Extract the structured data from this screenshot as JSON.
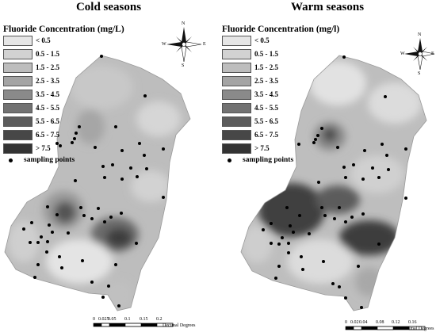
{
  "cold": {
    "title": "Cold seasons",
    "legend_title": "Fluoride Concentration (mg/L)",
    "legend": [
      {
        "label": "< 0.5",
        "color": "#e6e6e6"
      },
      {
        "label": "0.5 - 1.5",
        "color": "#d2d2d2"
      },
      {
        "label": "1.5 - 2.5",
        "color": "#bdbdbd"
      },
      {
        "label": "2.5 - 3.5",
        "color": "#a4a4a4"
      },
      {
        "label": "3.5 - 4.5",
        "color": "#8a8a8a"
      },
      {
        "label": "4.5 - 5.5",
        "color": "#727272"
      },
      {
        "label": "5.5 - 6.5",
        "color": "#5c5c5c"
      },
      {
        "label": "6.5 - 7.5",
        "color": "#474747"
      },
      {
        "label": "> 7.5",
        "color": "#333333"
      }
    ],
    "sampling_label": "sampling points",
    "scale_labels": [
      "0",
      "0.025",
      "0.05",
      "0.1",
      "0.15",
      "0.2"
    ],
    "scale_unit": "Decimal Degrees"
  },
  "warm": {
    "title": "Warm seasons",
    "legend_title": "Fluoride Concentration (mg/l)",
    "legend": [
      {
        "label": "< 0.5",
        "color": "#e6e6e6"
      },
      {
        "label": "0.5 - 1.5",
        "color": "#d2d2d2"
      },
      {
        "label": "1.5 - 2.5",
        "color": "#bdbdbd"
      },
      {
        "label": "2.5 - 3.5",
        "color": "#a4a4a4"
      },
      {
        "label": "3.5 - 4.5",
        "color": "#8a8a8a"
      },
      {
        "label": "4.5 - 5.5",
        "color": "#727272"
      },
      {
        "label": "5.5 - 6.5",
        "color": "#5c5c5c"
      },
      {
        "label": "6.5 - 7.5",
        "color": "#474747"
      },
      {
        "label": "> 7.5",
        "color": "#333333"
      }
    ],
    "sampling_label": "sampling points",
    "scale_labels": [
      "0",
      "0.02",
      "0.04",
      "0.08",
      "0.12",
      "0.16"
    ],
    "scale_unit": "Decimal Degrees"
  },
  "compass": {
    "n": "N",
    "s": "S",
    "e": "E",
    "w": "W"
  }
}
